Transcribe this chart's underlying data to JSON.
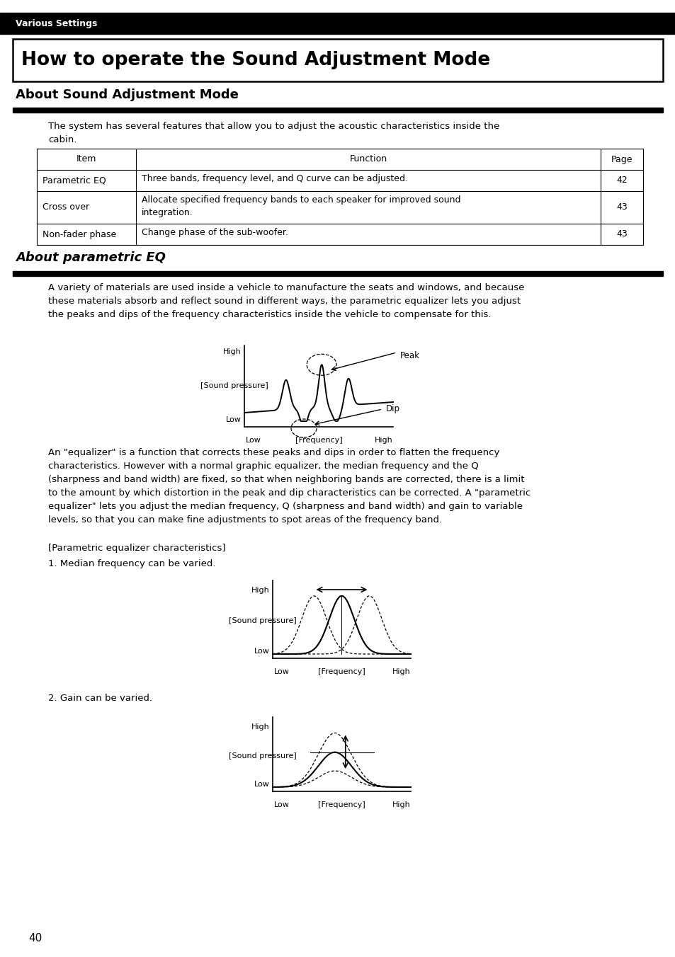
{
  "page_bg": "#ffffff",
  "top_bar_color": "#000000",
  "top_bar_text": "Various Settings",
  "top_bar_text_color": "#ffffff",
  "main_title": "How to operate the Sound Adjustment Mode",
  "section1_title": "About Sound Adjustment Mode",
  "section1_intro": "The system has several features that allow you to adjust the acoustic characteristics inside the\ncabin.",
  "table_headers": [
    "Item",
    "Function",
    "Page"
  ],
  "table_rows": [
    [
      "Parametric EQ",
      "Three bands, frequency level, and Q curve can be adjusted.",
      "42"
    ],
    [
      "Cross over",
      "Allocate specified frequency bands to each speaker for improved sound\nintegration.",
      "43"
    ],
    [
      "Non-fader phase",
      "Change phase of the sub-woofer.",
      "43"
    ]
  ],
  "section2_title": "About parametric EQ",
  "section2_para1": "A variety of materials are used inside a vehicle to manufacture the seats and windows, and because\nthese materials absorb and reflect sound in different ways, the parametric equalizer lets you adjust\nthe peaks and dips of the frequency characteristics inside the vehicle to compensate for this.",
  "section2_para2": "An \"equalizer\" is a function that corrects these peaks and dips in order to flatten the frequency\ncharacteristics. However with a normal graphic equalizer, the median frequency and the Q\n(sharpness and band width) are fixed, so that when neighboring bands are corrected, there is a limit\nto the amount by which distortion in the peak and dip characteristics can be corrected. A \"parametric\nequalizer\" lets you adjust the median frequency, Q (sharpness and band width) and gain to variable\nlevels, so that you can make fine adjustments to spot areas of the frequency band.",
  "param_char_label": "[Parametric equalizer characteristics]",
  "item1_label": "1. Median frequency can be varied.",
  "item2_label": "2. Gain can be varied.",
  "page_number": "40"
}
